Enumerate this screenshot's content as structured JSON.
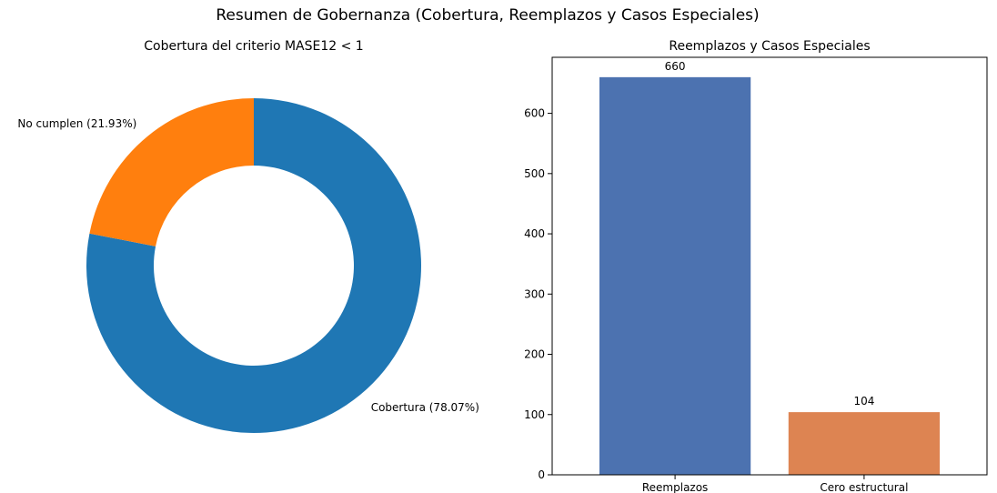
{
  "figure": {
    "title": "Resumen de Gobernanza (Cobertura, Reemplazos y Casos Especiales)"
  },
  "chart_data": [
    {
      "type": "pie",
      "style": "donut",
      "title": "Cobertura del criterio MASE12 < 1",
      "slices": [
        {
          "label": "Cobertura (78.07%)",
          "value": 78.07,
          "color": "#1f77b4"
        },
        {
          "label": "No cumplen (21.93%)",
          "value": 21.93,
          "color": "#ff7f0e"
        }
      ],
      "start_angle": "top, clockwise"
    },
    {
      "type": "bar",
      "title": "Reemplazos y Casos Especiales",
      "categories": [
        "Reemplazos",
        "Cero estructural"
      ],
      "values": [
        660,
        104
      ],
      "data_labels": [
        "660",
        "104"
      ],
      "colors": [
        "#4c72b0",
        "#dd8452"
      ],
      "ylim": [
        0,
        693
      ],
      "yticks": [
        0,
        100,
        200,
        300,
        400,
        500,
        600
      ],
      "xlabel": "",
      "ylabel": "",
      "grid": false
    }
  ]
}
